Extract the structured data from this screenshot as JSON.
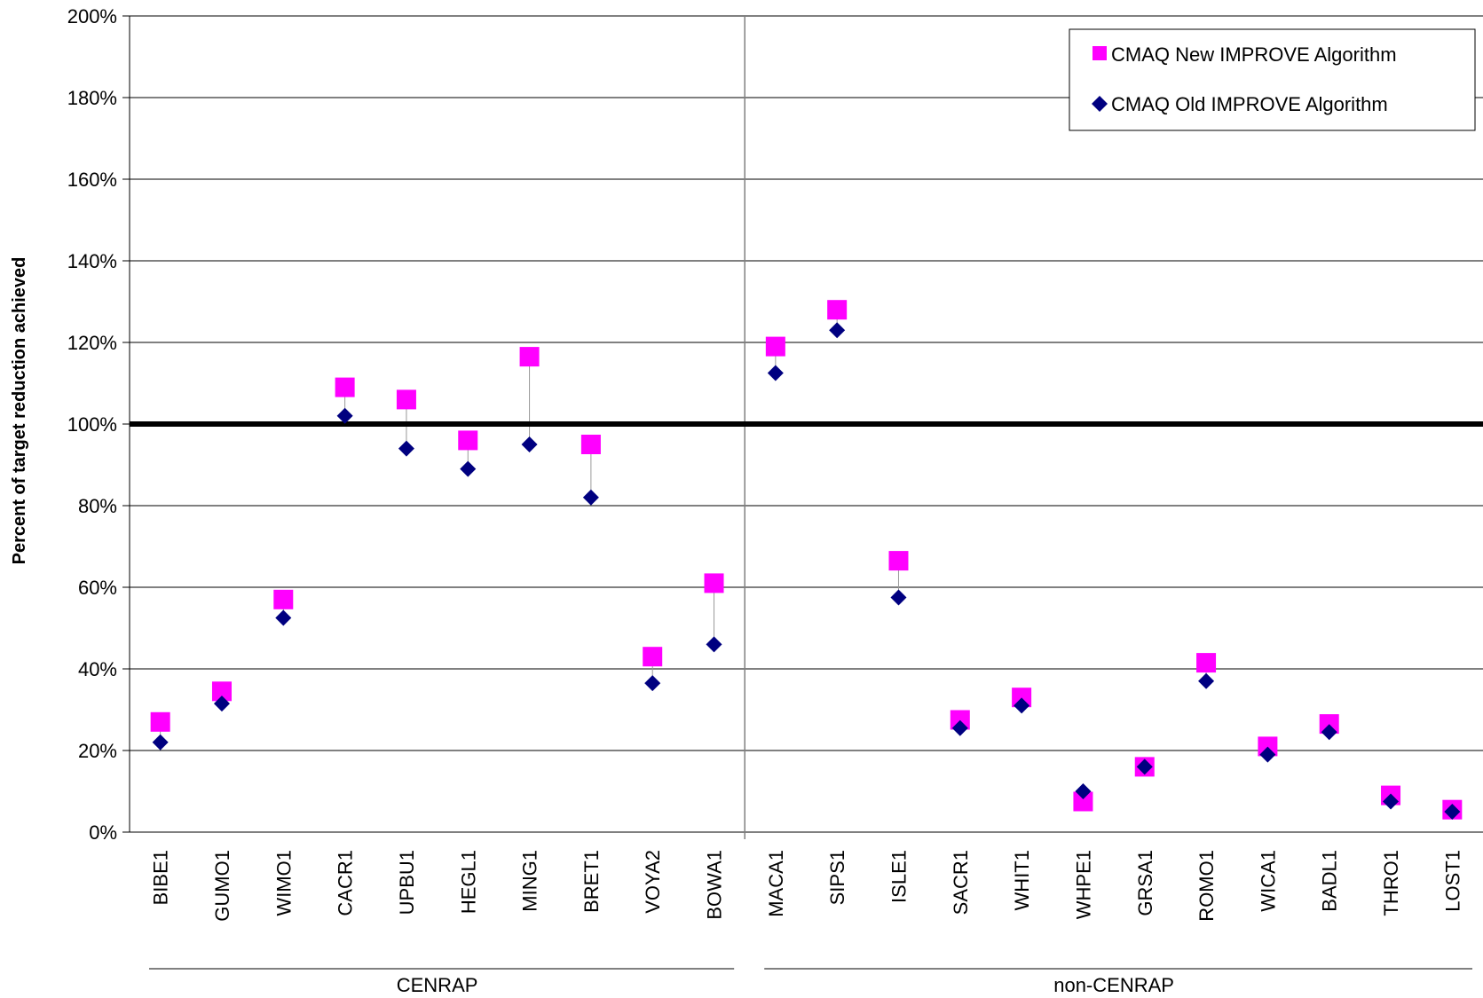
{
  "chart_data": {
    "type": "scatter",
    "ylabel": "Percent of target reduction achieved",
    "ylim": [
      0,
      200
    ],
    "ytick_labels": [
      "0%",
      "20%",
      "40%",
      "60%",
      "80%",
      "100%",
      "120%",
      "140%",
      "160%",
      "180%",
      "200%"
    ],
    "grid": true,
    "legend_position": "top-right",
    "reference_line": 100,
    "categories": [
      "BIBE1",
      "GUMO1",
      "WIMO1",
      "CACR1",
      "UPBU1",
      "HEGL1",
      "MING1",
      "BRET1",
      "VOYA2",
      "BOWA1",
      "MACA1",
      "SIPS1",
      "ISLE1",
      "SACR1",
      "WHIT1",
      "WHPE1",
      "GRSA1",
      "ROMO1",
      "WICA1",
      "BADL1",
      "THRO1",
      "LOST1"
    ],
    "groups": [
      {
        "label": "CENRAP",
        "count": 10
      },
      {
        "label": "non-CENRAP",
        "count": 12
      }
    ],
    "series": [
      {
        "name": "CMAQ New IMPROVE Algorithm",
        "color": "#FF00FF",
        "marker": "square",
        "values": [
          27,
          34.5,
          57,
          109,
          106,
          96,
          116.5,
          95,
          43,
          61,
          119,
          128,
          66.5,
          27.5,
          33,
          7.5,
          16,
          41.5,
          21,
          26.5,
          9,
          5.5
        ]
      },
      {
        "name": "CMAQ Old IMPROVE Algorithm",
        "color": "#000080",
        "marker": "diamond",
        "values": [
          22,
          31.5,
          52.5,
          102,
          94,
          89,
          95,
          82,
          36.5,
          46,
          112.5,
          123,
          57.5,
          25.5,
          31,
          10,
          16,
          37,
          19,
          24.5,
          7.5,
          5
        ]
      }
    ]
  }
}
